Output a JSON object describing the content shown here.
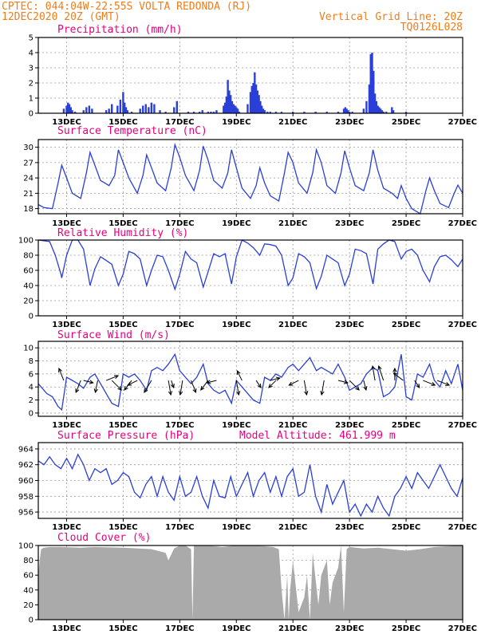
{
  "header": {
    "line1_left": "CPTEC:   044:04W-22:55S  VOLTA REDONDA (RJ)",
    "line2_left": "12DEC2020 20Z (GMT)",
    "line2_right": "Vertical Grid Line: 20Z",
    "line3_right": "TQ0126L028"
  },
  "colors": {
    "header": "#f07c1a",
    "titles": "#e6007e",
    "series_line": "#2a3fd8",
    "precip_bars": "#2a3fd8",
    "cloud_fill": "#aaaaaa"
  },
  "x_axis": {
    "day_ticks": [
      13,
      15,
      17,
      19,
      21,
      23,
      25,
      27
    ],
    "day_labels": [
      "13DEC",
      "15DEC",
      "17DEC",
      "19DEC",
      "21DEC",
      "23DEC",
      "25DEC",
      "27DEC"
    ]
  },
  "chart_data": [
    {
      "type": "bar",
      "title": "Precipitation (mm/h)",
      "ylim": [
        0,
        5
      ],
      "yticks": [
        0,
        1,
        2,
        3,
        4,
        5
      ],
      "x": [
        12.9,
        13.0,
        13.05,
        13.1,
        13.15,
        13.2,
        13.3,
        13.6,
        13.7,
        13.8,
        13.9,
        14.4,
        14.5,
        14.6,
        14.8,
        14.9,
        15.0,
        15.05,
        15.1,
        15.15,
        15.3,
        15.6,
        15.7,
        15.8,
        15.9,
        16.0,
        16.1,
        16.3,
        16.5,
        16.8,
        16.9,
        17.3,
        17.5,
        17.7,
        17.8,
        18.0,
        18.1,
        18.2,
        18.3,
        18.55,
        18.6,
        18.65,
        18.7,
        18.75,
        18.8,
        18.85,
        18.9,
        18.95,
        19.0,
        19.05,
        19.1,
        19.4,
        19.5,
        19.55,
        19.6,
        19.65,
        19.7,
        19.75,
        19.8,
        19.85,
        19.9,
        19.95,
        20.0,
        20.1,
        20.2,
        20.4,
        20.6,
        21.0,
        21.4,
        21.8,
        22.2,
        22.6,
        22.8,
        22.85,
        22.9,
        22.95,
        23.0,
        23.1,
        23.5,
        23.6,
        23.7,
        23.75,
        23.8,
        23.85,
        23.9,
        23.95,
        24.0,
        24.05,
        24.1,
        24.15,
        24.2,
        24.3,
        24.5,
        24.55,
        25.0
      ],
      "values": [
        0.3,
        0.5,
        0.7,
        0.6,
        0.4,
        0.2,
        0.1,
        0.2,
        0.4,
        0.5,
        0.3,
        0.2,
        0.3,
        0.6,
        0.5,
        0.9,
        1.4,
        0.7,
        0.4,
        0.2,
        0.1,
        0.3,
        0.5,
        0.6,
        0.4,
        0.7,
        0.6,
        0.2,
        0.1,
        0.4,
        0.8,
        0.1,
        0.1,
        0.1,
        0.2,
        0.1,
        0.1,
        0.1,
        0.2,
        0.5,
        0.7,
        1.1,
        2.2,
        1.5,
        1.2,
        0.8,
        0.6,
        0.5,
        0.4,
        0.3,
        0.1,
        0.6,
        1.4,
        1.8,
        2.0,
        2.7,
        1.9,
        1.5,
        1.2,
        0.8,
        0.5,
        0.3,
        0.2,
        0.1,
        0.1,
        0.1,
        0.1,
        0.1,
        0.1,
        0.1,
        0.1,
        0.1,
        0.3,
        0.4,
        0.3,
        0.2,
        0.1,
        0.1,
        0.3,
        0.8,
        1.9,
        3.9,
        4.0,
        2.8,
        1.3,
        0.8,
        0.5,
        0.4,
        0.3,
        0.2,
        0.1,
        0.1,
        0.4,
        0.2,
        0.1
      ],
      "grid": true
    },
    {
      "type": "line",
      "title": "Surface Temperature (nC)",
      "ylim": [
        17,
        31.5
      ],
      "yticks": [
        18,
        21,
        24,
        27,
        30
      ],
      "x": [
        12.0,
        12.2,
        12.5,
        12.7,
        12.83,
        13.0,
        13.2,
        13.5,
        13.7,
        13.83,
        14.0,
        14.2,
        14.5,
        14.7,
        14.83,
        15.0,
        15.2,
        15.5,
        15.7,
        15.83,
        16.0,
        16.2,
        16.5,
        16.7,
        16.83,
        17.0,
        17.2,
        17.5,
        17.7,
        17.83,
        18.0,
        18.2,
        18.5,
        18.7,
        18.83,
        19.0,
        19.2,
        19.5,
        19.7,
        19.83,
        20.0,
        20.2,
        20.5,
        20.7,
        20.83,
        21.0,
        21.2,
        21.5,
        21.7,
        21.83,
        22.0,
        22.2,
        22.5,
        22.7,
        22.83,
        23.0,
        23.2,
        23.5,
        23.7,
        23.83,
        24.0,
        24.2,
        24.5,
        24.7,
        24.83,
        25.0,
        25.2,
        25.5,
        25.7,
        25.83,
        26.0,
        26.2,
        26.5,
        26.7,
        26.83,
        27.0
      ],
      "values": [
        18.8,
        18.2,
        18.0,
        23.0,
        26.5,
        24.0,
        21.0,
        20.0,
        25.0,
        29.0,
        26.5,
        23.5,
        22.5,
        24.5,
        29.5,
        27.0,
        24.0,
        21.0,
        24.5,
        28.5,
        26.0,
        23.0,
        21.5,
        26.0,
        30.5,
        28.0,
        24.5,
        21.5,
        25.5,
        30.2,
        27.5,
        23.5,
        22.0,
        25.0,
        29.5,
        26.0,
        22.0,
        20.0,
        22.5,
        26.0,
        23.0,
        20.5,
        19.5,
        25.0,
        29.0,
        27.0,
        23.0,
        21.0,
        25.0,
        29.5,
        27.0,
        22.5,
        21.0,
        25.0,
        29.3,
        26.0,
        22.5,
        21.5,
        25.0,
        29.5,
        25.5,
        22.0,
        21.0,
        20.0,
        22.5,
        20.0,
        18.0,
        17.0,
        21.5,
        24.0,
        21.5,
        19.0,
        18.2,
        21.0,
        22.6,
        21.0
      ],
      "grid": true
    },
    {
      "type": "line",
      "title": "Relative Humidity (%)",
      "ylim": [
        0,
        100
      ],
      "yticks": [
        0,
        20,
        40,
        60,
        80,
        100
      ],
      "x": [
        12.0,
        12.4,
        12.6,
        12.8,
        12.83,
        13.0,
        13.2,
        13.4,
        13.6,
        13.83,
        14.0,
        14.2,
        14.4,
        14.6,
        14.83,
        15.0,
        15.2,
        15.4,
        15.6,
        15.83,
        16.0,
        16.2,
        16.4,
        16.6,
        16.83,
        17.0,
        17.2,
        17.4,
        17.6,
        17.83,
        18.0,
        18.2,
        18.4,
        18.6,
        18.83,
        19.0,
        19.2,
        19.4,
        19.6,
        19.83,
        20.0,
        20.2,
        20.4,
        20.6,
        20.83,
        21.0,
        21.2,
        21.4,
        21.6,
        21.83,
        22.0,
        22.2,
        22.4,
        22.6,
        22.83,
        23.0,
        23.2,
        23.4,
        23.6,
        23.83,
        24.0,
        24.2,
        24.4,
        24.6,
        24.83,
        25.0,
        25.2,
        25.4,
        25.6,
        25.83,
        26.0,
        26.2,
        26.4,
        26.6,
        26.83,
        27.0
      ],
      "values": [
        100,
        98,
        80,
        55,
        50,
        80,
        100,
        100,
        88,
        40,
        62,
        78,
        73,
        68,
        40,
        55,
        85,
        82,
        75,
        40,
        60,
        80,
        78,
        60,
        35,
        55,
        85,
        75,
        70,
        38,
        58,
        82,
        78,
        82,
        42,
        78,
        100,
        96,
        90,
        80,
        95,
        94,
        92,
        80,
        40,
        50,
        82,
        78,
        70,
        36,
        52,
        80,
        75,
        70,
        40,
        55,
        88,
        86,
        82,
        42,
        88,
        95,
        100,
        98,
        75,
        85,
        88,
        80,
        60,
        45,
        65,
        78,
        80,
        74,
        65,
        75
      ],
      "grid": true
    },
    {
      "type": "line",
      "title": "Surface Wind (m/s)",
      "ylim": [
        -0.5,
        11
      ],
      "yticks": [
        0,
        2,
        4,
        6,
        8,
        10
      ],
      "x": [
        12.0,
        12.3,
        12.5,
        12.7,
        12.83,
        13.0,
        13.2,
        13.4,
        13.6,
        13.83,
        14.0,
        14.2,
        14.4,
        14.6,
        14.83,
        15.0,
        15.2,
        15.4,
        15.6,
        15.83,
        16.0,
        16.2,
        16.4,
        16.6,
        16.83,
        17.0,
        17.2,
        17.4,
        17.6,
        17.83,
        18.0,
        18.2,
        18.4,
        18.6,
        18.83,
        19.0,
        19.2,
        19.4,
        19.6,
        19.83,
        20.0,
        20.2,
        20.4,
        20.6,
        20.83,
        21.0,
        21.2,
        21.4,
        21.6,
        21.83,
        22.0,
        22.2,
        22.4,
        22.6,
        22.83,
        23.0,
        23.2,
        23.4,
        23.6,
        23.83,
        24.0,
        24.2,
        24.4,
        24.6,
        24.83,
        25.0,
        25.2,
        25.4,
        25.6,
        25.83,
        26.0,
        26.2,
        26.4,
        26.6,
        26.83,
        27.0
      ],
      "values": [
        4.5,
        3.0,
        2.5,
        1.0,
        0.5,
        5.5,
        5.0,
        4.5,
        3.8,
        5.5,
        6.0,
        4.5,
        3.0,
        1.5,
        1.0,
        6.0,
        5.5,
        6.0,
        5.0,
        3.5,
        6.5,
        7.0,
        6.5,
        7.5,
        9.0,
        6.5,
        5.5,
        4.5,
        5.5,
        7.5,
        4.5,
        3.5,
        3.0,
        3.5,
        1.5,
        5.0,
        4.0,
        3.0,
        2.0,
        1.5,
        5.5,
        5.0,
        6.0,
        5.5,
        7.0,
        7.5,
        6.5,
        7.5,
        8.5,
        6.5,
        7.0,
        6.5,
        6.0,
        7.5,
        5.5,
        3.5,
        4.0,
        4.5,
        6.0,
        7.0,
        6.5,
        2.5,
        3.0,
        4.0,
        9.0,
        2.5,
        2.0,
        6.0,
        5.5,
        7.5,
        5.0,
        4.0,
        6.5,
        4.5,
        7.5,
        3.5
      ],
      "barbs": [
        {
          "x": 12.9,
          "dx": -0.2,
          "dy": -0.5
        },
        {
          "x": 13.6,
          "dx": 0.4,
          "dy": 0.1
        },
        {
          "x": 13.5,
          "dx": -0.2,
          "dy": 0.5
        },
        {
          "x": 14.1,
          "dx": -0.1,
          "dy": 0.5
        },
        {
          "x": 14.4,
          "dx": 0.5,
          "dy": -0.2
        },
        {
          "x": 14.6,
          "dx": 0.4,
          "dy": 0.4
        },
        {
          "x": 15.3,
          "dx": -0.3,
          "dy": 0.4
        },
        {
          "x": 15.5,
          "dx": -0.4,
          "dy": 0.2
        },
        {
          "x": 16.0,
          "dx": -0.3,
          "dy": 0.5
        },
        {
          "x": 16.6,
          "dx": 0.1,
          "dy": 0.6
        },
        {
          "x": 16.7,
          "dx": 0.1,
          "dy": 0.3
        },
        {
          "x": 17.1,
          "dx": -0.1,
          "dy": 0.6
        },
        {
          "x": 17.4,
          "dx": 0.2,
          "dy": 0.5
        },
        {
          "x": 18.0,
          "dx": -0.3,
          "dy": 0.4
        },
        {
          "x": 18.3,
          "dx": -0.4,
          "dy": 0.1
        },
        {
          "x": 19.0,
          "dx": 0.1,
          "dy": 0.6
        },
        {
          "x": 19.2,
          "dx": -0.2,
          "dy": -0.4
        },
        {
          "x": 19.7,
          "dx": 0.2,
          "dy": 0.3
        },
        {
          "x": 20.2,
          "dx": 0.4,
          "dy": -0.1
        },
        {
          "x": 20.4,
          "dx": -0.3,
          "dy": 0.3
        },
        {
          "x": 21.2,
          "dx": -0.4,
          "dy": 0.2
        },
        {
          "x": 21.4,
          "dx": 0.1,
          "dy": 0.6
        },
        {
          "x": 22.1,
          "dx": -0.1,
          "dy": 0.6
        },
        {
          "x": 22.6,
          "dx": 0.4,
          "dy": 0.1
        },
        {
          "x": 23.0,
          "dx": 0.4,
          "dy": 0.4
        },
        {
          "x": 23.5,
          "dx": 0.1,
          "dy": 0.4
        },
        {
          "x": 23.9,
          "dx": -0.1,
          "dy": -0.6
        },
        {
          "x": 24.2,
          "dx": -0.2,
          "dy": -0.6
        },
        {
          "x": 24.6,
          "dx": 0.0,
          "dy": -0.5
        },
        {
          "x": 24.9,
          "dx": -0.4,
          "dy": -0.3
        },
        {
          "x": 25.3,
          "dx": 0.2,
          "dy": 0.3
        },
        {
          "x": 25.6,
          "dx": 0.5,
          "dy": 0.2
        },
        {
          "x": 26.1,
          "dx": 0.5,
          "dy": 0.2
        }
      ],
      "grid": true
    },
    {
      "type": "line",
      "title": "Surface Pressure (hPa)",
      "subtitle": "Model Altitude: 461.999 m",
      "ylim": [
        955.2,
        964.8
      ],
      "yticks": [
        956,
        958,
        960,
        962,
        964
      ],
      "x": [
        12.0,
        12.2,
        12.4,
        12.6,
        12.8,
        13.0,
        13.2,
        13.4,
        13.6,
        13.8,
        14.0,
        14.2,
        14.4,
        14.6,
        14.8,
        15.0,
        15.2,
        15.4,
        15.6,
        15.8,
        16.0,
        16.2,
        16.4,
        16.6,
        16.8,
        17.0,
        17.2,
        17.4,
        17.6,
        17.8,
        18.0,
        18.2,
        18.4,
        18.6,
        18.8,
        19.0,
        19.2,
        19.4,
        19.6,
        19.8,
        20.0,
        20.2,
        20.4,
        20.6,
        20.8,
        21.0,
        21.2,
        21.4,
        21.6,
        21.8,
        22.0,
        22.2,
        22.4,
        22.6,
        22.8,
        23.0,
        23.2,
        23.4,
        23.6,
        23.8,
        24.0,
        24.2,
        24.4,
        24.6,
        24.8,
        25.0,
        25.2,
        25.4,
        25.6,
        25.8,
        26.0,
        26.2,
        26.4,
        26.6,
        26.8,
        27.0
      ],
      "values": [
        962.5,
        962.0,
        963.0,
        962.0,
        961.5,
        962.8,
        961.5,
        963.3,
        962.0,
        960.0,
        961.5,
        961.0,
        961.5,
        959.5,
        960.0,
        961.0,
        960.5,
        958.5,
        957.8,
        959.5,
        960.5,
        958.0,
        960.5,
        958.5,
        957.5,
        960.5,
        958.0,
        958.5,
        960.5,
        958.0,
        956.5,
        960.0,
        958.0,
        957.8,
        960.5,
        958.0,
        959.5,
        961.0,
        958.0,
        960.0,
        961.0,
        958.5,
        960.5,
        958.0,
        960.5,
        961.5,
        958.0,
        958.5,
        962.0,
        958.0,
        956.0,
        959.5,
        957.0,
        958.5,
        960.0,
        956.0,
        957.0,
        955.5,
        957.0,
        956.0,
        958.0,
        956.5,
        955.5,
        958.0,
        959.0,
        960.5,
        959.0,
        961.0,
        960.0,
        959.0,
        960.5,
        962.0,
        960.5,
        959.0,
        958.0,
        960.3
      ],
      "grid": true
    },
    {
      "type": "area",
      "title": "Cloud Cover (%)",
      "ylim": [
        0,
        100
      ],
      "yticks": [
        0,
        20,
        40,
        60,
        80,
        100
      ],
      "x": [
        12.0,
        12.05,
        12.1,
        12.2,
        12.4,
        12.8,
        13.5,
        14.0,
        15.0,
        16.0,
        16.5,
        16.6,
        16.7,
        16.8,
        17.0,
        17.2,
        17.4,
        17.45,
        17.5,
        17.6,
        18.0,
        18.5,
        19.0,
        19.5,
        20.0,
        20.3,
        20.5,
        20.6,
        20.7,
        20.8,
        20.85,
        20.9,
        21.0,
        21.2,
        21.4,
        21.5,
        21.6,
        21.7,
        21.9,
        22.0,
        22.2,
        22.3,
        22.4,
        22.6,
        22.7,
        22.8,
        22.9,
        23.0,
        23.5,
        24.0,
        24.5,
        25.0,
        25.5,
        26.0,
        26.5,
        27.0
      ],
      "values": [
        60,
        80,
        95,
        97,
        98,
        98,
        97,
        98,
        97,
        95,
        90,
        80,
        88,
        96,
        100,
        100,
        95,
        0,
        100,
        100,
        100,
        98,
        100,
        100,
        99,
        98,
        95,
        40,
        0,
        60,
        0,
        40,
        80,
        10,
        30,
        60,
        0,
        90,
        20,
        60,
        80,
        20,
        50,
        70,
        100,
        10,
        95,
        98,
        96,
        97,
        95,
        93,
        95,
        98,
        99,
        100
      ],
      "grid": true
    }
  ]
}
